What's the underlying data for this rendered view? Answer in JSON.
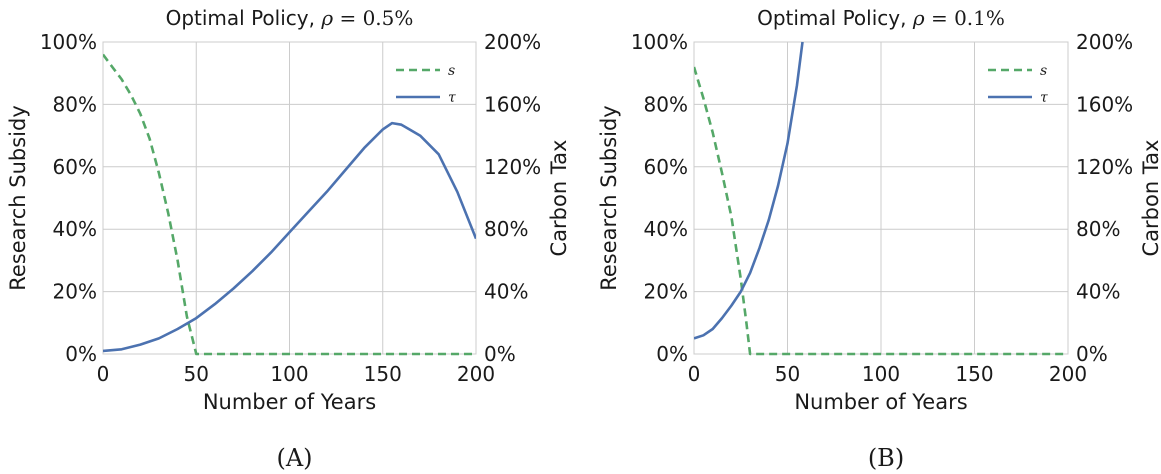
{
  "chart_data": [
    {
      "type": "line",
      "caption": "(A)",
      "title_prefix": "Optimal Policy, ",
      "title_math": "ρ",
      "title_value": " = 0.5%",
      "xlabel": "Number of Years",
      "ylabel_left": "Research Subsidy",
      "ylabel_right": "Carbon Tax",
      "xlim": [
        0,
        200
      ],
      "ylim_left": [
        0,
        100
      ],
      "ylim_right": [
        0,
        200
      ],
      "x_ticks": [
        "0",
        "50",
        "100",
        "150",
        "200"
      ],
      "y_ticks_left": [
        "0%",
        "20%",
        "40%",
        "60%",
        "80%",
        "100%"
      ],
      "y_ticks_right": [
        "0%",
        "40%",
        "80%",
        "120%",
        "160%",
        "200%"
      ],
      "grid": true,
      "legend_position": "top-right",
      "series": [
        {
          "name": "s",
          "axis": "left",
          "color": "#55a868",
          "style": "dashed",
          "x": [
            0,
            5,
            10,
            15,
            20,
            25,
            30,
            35,
            40,
            45,
            50,
            60,
            80,
            100,
            120,
            140,
            160,
            180,
            200
          ],
          "y": [
            96,
            92,
            88,
            83,
            77,
            69,
            58,
            45,
            30,
            12,
            0,
            0,
            0,
            0,
            0,
            0,
            0,
            0,
            0
          ]
        },
        {
          "name": "τ",
          "axis": "right",
          "color": "#4c72b0",
          "style": "solid",
          "x": [
            0,
            10,
            20,
            30,
            40,
            50,
            60,
            70,
            80,
            90,
            100,
            110,
            120,
            130,
            140,
            150,
            155,
            160,
            170,
            180,
            190,
            200
          ],
          "y": [
            2,
            3,
            6,
            10,
            16,
            23,
            32,
            42,
            53,
            65,
            78,
            91,
            104,
            118,
            132,
            144,
            148,
            147,
            140,
            128,
            104,
            74
          ]
        }
      ]
    },
    {
      "type": "line",
      "caption": "(B)",
      "title_prefix": "Optimal Policy, ",
      "title_math": "ρ",
      "title_value": " = 0.1%",
      "xlabel": "Number of Years",
      "ylabel_left": "Research Subsidy",
      "ylabel_right": "Carbon Tax",
      "xlim": [
        0,
        200
      ],
      "ylim_left": [
        0,
        100
      ],
      "ylim_right": [
        0,
        200
      ],
      "x_ticks": [
        "0",
        "50",
        "100",
        "150",
        "200"
      ],
      "y_ticks_left": [
        "0%",
        "20%",
        "40%",
        "60%",
        "80%",
        "100%"
      ],
      "y_ticks_right": [
        "0%",
        "40%",
        "80%",
        "120%",
        "160%",
        "200%"
      ],
      "grid": true,
      "legend_position": "top-right",
      "series": [
        {
          "name": "s",
          "axis": "left",
          "color": "#55a868",
          "style": "dashed",
          "x": [
            0,
            5,
            10,
            15,
            20,
            25,
            28,
            30,
            40,
            60,
            80,
            100,
            120,
            140,
            160,
            180,
            200
          ],
          "y": [
            92,
            82,
            71,
            58,
            44,
            24,
            10,
            0,
            0,
            0,
            0,
            0,
            0,
            0,
            0,
            0,
            0
          ]
        },
        {
          "name": "τ",
          "axis": "right",
          "color": "#4c72b0",
          "style": "solid",
          "x": [
            0,
            5,
            10,
            15,
            20,
            25,
            30,
            35,
            40,
            45,
            50,
            55,
            58
          ],
          "y": [
            10,
            12,
            16,
            23,
            31,
            40,
            52,
            68,
            86,
            108,
            135,
            172,
            200
          ]
        }
      ]
    }
  ]
}
